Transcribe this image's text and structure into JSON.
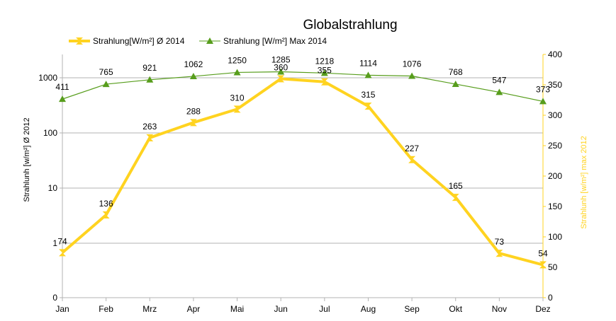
{
  "chart_data": {
    "type": "line",
    "title": "Globalstrahlung",
    "categories": [
      "Jan",
      "Feb",
      "Mrz",
      "Apr",
      "Mai",
      "Jun",
      "Jul",
      "Aug",
      "Sep",
      "Okt",
      "Nov",
      "Dez"
    ],
    "series": [
      {
        "name": "Strahlung[W/m²] Ø 2014",
        "axis": "right",
        "values": [
          74,
          136,
          263,
          288,
          310,
          360,
          355,
          315,
          227,
          165,
          73,
          54
        ],
        "labels": [
          "74",
          "136",
          "263",
          "288",
          "310",
          "360",
          "355",
          "315",
          "227",
          "165",
          "73",
          "54"
        ],
        "color": "#ffd320",
        "marker": "hourglass"
      },
      {
        "name": "Strahlung [W/m²] Max 2014",
        "axis": "left",
        "values": [
          411,
          765,
          921,
          1062,
          1250,
          1285,
          1218,
          1114,
          1076,
          768,
          547,
          373
        ],
        "labels": [
          "411",
          "765",
          "921",
          "1062",
          "1250",
          "1285",
          "1218",
          "1114",
          "1076",
          "768",
          "547",
          "373"
        ],
        "color": "#579d1c",
        "marker": "triangle"
      }
    ],
    "y_left": {
      "label": "Strahlunh [w/m²] Ø 2012",
      "scale": "log",
      "ticks": [
        1,
        10,
        100,
        1000
      ],
      "tick_labels": [
        "1",
        "10",
        "100",
        "1000"
      ],
      "bottom_label": "0"
    },
    "y_right": {
      "label": "Strahlunh [w/m²] max 2012",
      "ylim": [
        0,
        400
      ],
      "ticks": [
        0,
        50,
        100,
        150,
        200,
        250,
        300,
        350,
        400
      ],
      "tick_labels": [
        "0",
        "50",
        "100",
        "150",
        "200",
        "250",
        "300",
        "350",
        "400"
      ],
      "color": "#ffd320"
    },
    "grid": true,
    "legend_position": "top"
  }
}
